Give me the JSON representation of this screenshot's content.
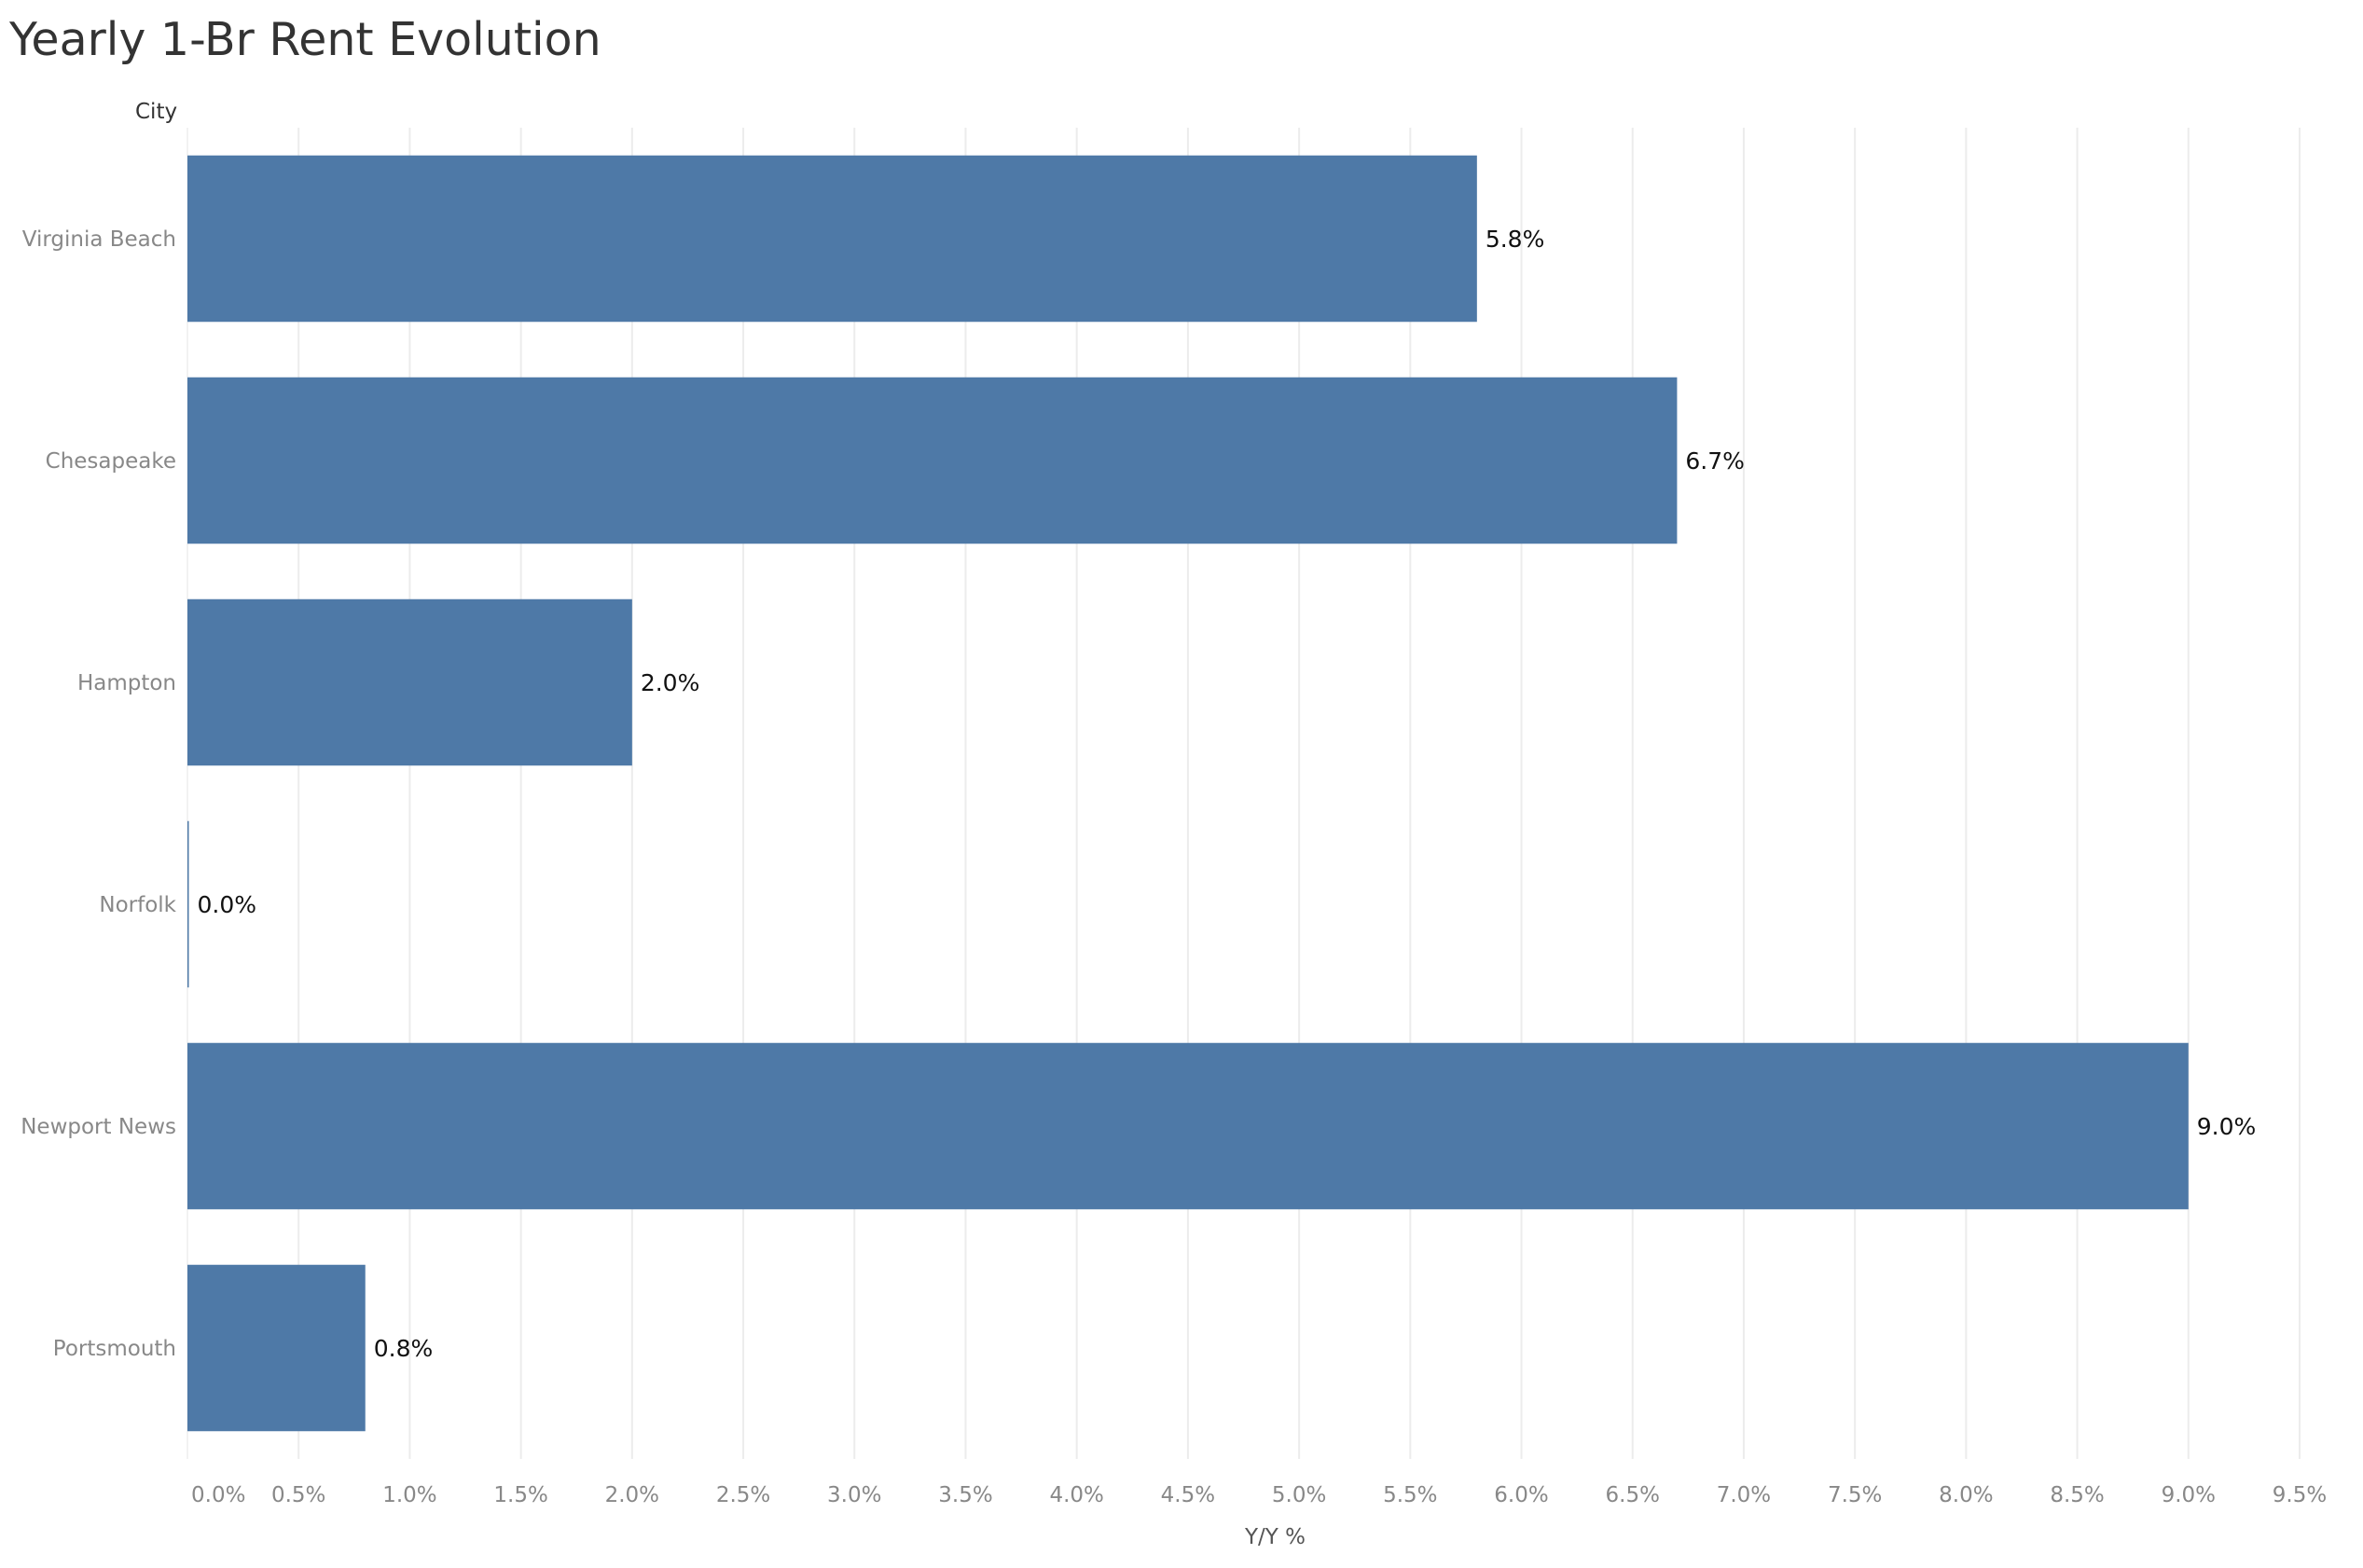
{
  "chart_data": {
    "type": "bar",
    "orientation": "horizontal",
    "title": "Yearly 1-Br Rent Evolution",
    "row_header": "City",
    "xlabel": "Y/Y %",
    "categories": [
      "Virginia Beach",
      "Chesapeake",
      "Hampton",
      "Norfolk",
      "Newport News",
      "Portsmouth"
    ],
    "values": [
      5.8,
      6.7,
      2.0,
      0.0,
      9.0,
      0.8
    ],
    "data_labels": [
      "5.8%",
      "6.7%",
      "2.0%",
      "0.0%",
      "9.0%",
      "0.8%"
    ],
    "x_ticks": [
      0,
      0.5,
      1,
      1.5,
      2,
      2.5,
      3,
      3.5,
      4,
      4.5,
      5,
      5.5,
      6,
      6.5,
      7,
      7.5,
      8,
      8.5,
      9,
      9.5
    ],
    "x_tick_labels": [
      "0.0%",
      "0.5%",
      "1.0%",
      "1.5%",
      "2.0%",
      "2.5%",
      "3.0%",
      "3.5%",
      "4.0%",
      "4.5%",
      "5.0%",
      "5.5%",
      "6.0%",
      "6.5%",
      "7.0%",
      "7.5%",
      "8.0%",
      "8.5%",
      "9.0%",
      "9.5%"
    ],
    "xlim": [
      0,
      9.5
    ],
    "grid": "vertical",
    "bar_color": "#4e79a7"
  }
}
